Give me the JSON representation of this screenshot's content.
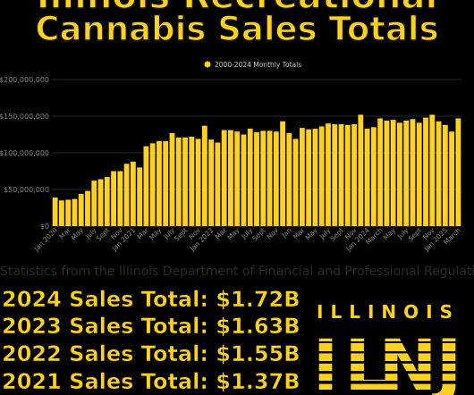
{
  "header": {
    "line1": "Illinois Recreational",
    "line2": "Cannabis Sales Totals"
  },
  "chart_data": {
    "type": "bar",
    "legend": "2000-2024 Monthly Totals",
    "legend_position": "top-center",
    "bar_color": "#FFD21F",
    "ylim": [
      0,
      200000000
    ],
    "yticks": [
      "$0",
      "$50,000,000",
      "$100,000,000",
      "$150,000,000",
      "$200,000,000"
    ],
    "grid": true,
    "xtick_labels": [
      "Jan 2020",
      "Mar",
      "May",
      "July",
      "Sept",
      "Nov",
      "Jan 2021",
      "Mar",
      "May",
      "July",
      "Sept",
      "Nov",
      "Jan 2022",
      "Mar",
      "May",
      "July",
      "Sept",
      "Nov",
      "Jan",
      "Mar",
      "May",
      "July",
      "Sept",
      "Nov",
      "Jan 2024",
      "March",
      "May",
      "July",
      "Sept",
      "Nov",
      "Jan 2025",
      "March"
    ],
    "categories": [
      "Jan 2020",
      "Feb 2020",
      "Mar 2020",
      "Apr 2020",
      "May 2020",
      "Jun 2020",
      "Jul 2020",
      "Aug 2020",
      "Sep 2020",
      "Oct 2020",
      "Nov 2020",
      "Dec 2020",
      "Jan 2021",
      "Feb 2021",
      "Mar 2021",
      "Apr 2021",
      "May 2021",
      "Jun 2021",
      "Jul 2021",
      "Aug 2021",
      "Sep 2021",
      "Oct 2021",
      "Nov 2021",
      "Dec 2021",
      "Jan 2022",
      "Feb 2022",
      "Mar 2022",
      "Apr 2022",
      "May 2022",
      "Jun 2022",
      "Jul 2022",
      "Aug 2022",
      "Sep 2022",
      "Oct 2022",
      "Nov 2022",
      "Dec 2022",
      "Jan 2023",
      "Feb 2023",
      "Mar 2023",
      "Apr 2023",
      "May 2023",
      "Jun 2023",
      "Jul 2023",
      "Aug 2023",
      "Sep 2023",
      "Oct 2023",
      "Nov 2023",
      "Dec 2023",
      "Jan 2024",
      "Feb 2024",
      "Mar 2024",
      "Apr 2024",
      "May 2024",
      "Jun 2024",
      "Jul 2024",
      "Aug 2024",
      "Sep 2024",
      "Oct 2024",
      "Nov 2024",
      "Dec 2024",
      "Jan 2025",
      "Feb 2025",
      "Mar 2025"
    ],
    "values": [
      39000000,
      35000000,
      36000000,
      37000000,
      44000000,
      48000000,
      62000000,
      64000000,
      67000000,
      75000000,
      75000000,
      85000000,
      88000000,
      80000000,
      109000000,
      113000000,
      116000000,
      116000000,
      127000000,
      121000000,
      121000000,
      122000000,
      119000000,
      137000000,
      118000000,
      114000000,
      131000000,
      131000000,
      129000000,
      125000000,
      133000000,
      128000000,
      130000000,
      130000000,
      129000000,
      143000000,
      127000000,
      119000000,
      134000000,
      132000000,
      133000000,
      136000000,
      140000000,
      139000000,
      139000000,
      138000000,
      139000000,
      152000000,
      133000000,
      135000000,
      147000000,
      144000000,
      145000000,
      141000000,
      144000000,
      146000000,
      141000000,
      148000000,
      152000000,
      143000000,
      138000000,
      129000000,
      147000000
    ]
  },
  "source_note": "Statistics from the Illinois Department of Financial and Professional Regulation",
  "totals": [
    "2024 Sales Total: $1.72B",
    "2023 Sales Total: $1.63B",
    "2022 Sales Total: $1.55B",
    "2021 Sales Total: $1.37B"
  ],
  "logo": {
    "top_text": "ILLINOIS",
    "letters": "ILNJ",
    "color": "#FFD21F"
  }
}
